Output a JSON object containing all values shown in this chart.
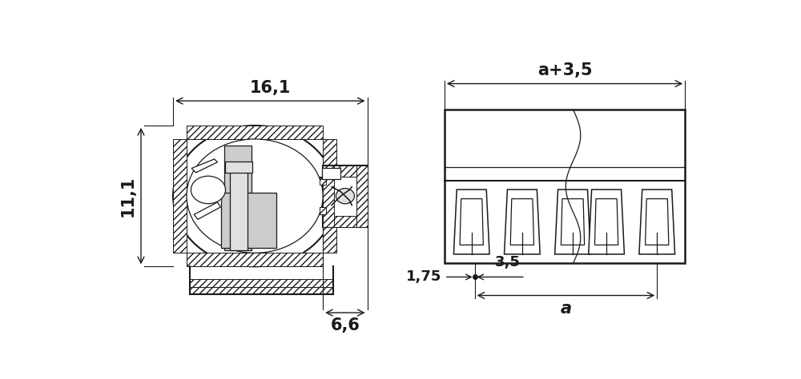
{
  "bg_color": "#ffffff",
  "line_color": "#1a1a1a",
  "fill_light": "#cccccc",
  "fill_lighter": "#e0e0e0",
  "fig_width": 10.0,
  "fig_height": 4.74,
  "annotation_fontsize": 13,
  "bold_fontsize": 15,
  "lw_main": 1.5,
  "lw_thin": 0.9,
  "lw_dim": 1.0
}
